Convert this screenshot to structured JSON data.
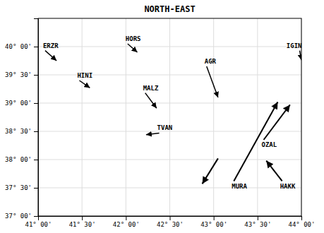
{
  "chart_data": {
    "type": "vector",
    "title": "NORTH-EAST",
    "xlim": [
      41.0,
      44.0
    ],
    "ylim": [
      37.0,
      40.5
    ],
    "xticks": [
      {
        "value": 41.0,
        "label": "41° 00'"
      },
      {
        "value": 41.5,
        "label": "41° 30'"
      },
      {
        "value": 42.0,
        "label": "42° 00'"
      },
      {
        "value": 42.5,
        "label": "42° 30'"
      },
      {
        "value": 43.0,
        "label": "43° 00'"
      },
      {
        "value": 43.5,
        "label": "43° 30'"
      },
      {
        "value": 44.0,
        "label": "44° 00'"
      }
    ],
    "yticks": [
      {
        "value": 37.0,
        "label": "37° 00'"
      },
      {
        "value": 37.5,
        "label": "37° 30'"
      },
      {
        "value": 38.0,
        "label": "38° 00'"
      },
      {
        "value": 38.5,
        "label": "38° 30'"
      },
      {
        "value": 39.0,
        "label": "39° 00'"
      },
      {
        "value": 39.5,
        "label": "39° 30'"
      },
      {
        "value": 40.0,
        "label": "40° 00'"
      }
    ],
    "grid": true,
    "color": "black",
    "vectors": [
      {
        "name": "ERZR",
        "x": 41.08,
        "y": 39.93,
        "dx": 0.13,
        "dy": -0.18
      },
      {
        "name": "HORS",
        "x": 42.02,
        "y": 40.05,
        "dx": 0.11,
        "dy": -0.15
      },
      {
        "name": "IGIN",
        "x": 43.98,
        "y": 39.93,
        "dx": 0.02,
        "dy": -0.17
      },
      {
        "name": "HINI",
        "x": 41.47,
        "y": 39.4,
        "dx": 0.12,
        "dy": -0.13
      },
      {
        "name": "MALZ",
        "x": 42.22,
        "y": 39.18,
        "dx": 0.13,
        "dy": -0.27
      },
      {
        "name": "AGR",
        "x": 42.92,
        "y": 39.65,
        "dx": 0.13,
        "dy": -0.55
      },
      {
        "name": "TVAN",
        "x": 42.38,
        "y": 38.47,
        "dx": -0.15,
        "dy": -0.03
      }
    ],
    "big_vectors": [
      {
        "name": "MURA",
        "x1": 43.23,
        "y1": 37.62,
        "x2": 43.73,
        "y2": 39.02
      },
      {
        "name": "OZAL",
        "x1": 43.57,
        "y1": 38.35,
        "x2": 43.87,
        "y2": 38.97
      },
      {
        "name": "HAKK",
        "x1": 43.78,
        "y1": 37.62,
        "x2": 43.6,
        "y2": 37.98
      },
      {
        "x1": 43.05,
        "y1": 38.02,
        "x2": 42.87,
        "y2": 37.57
      }
    ]
  }
}
